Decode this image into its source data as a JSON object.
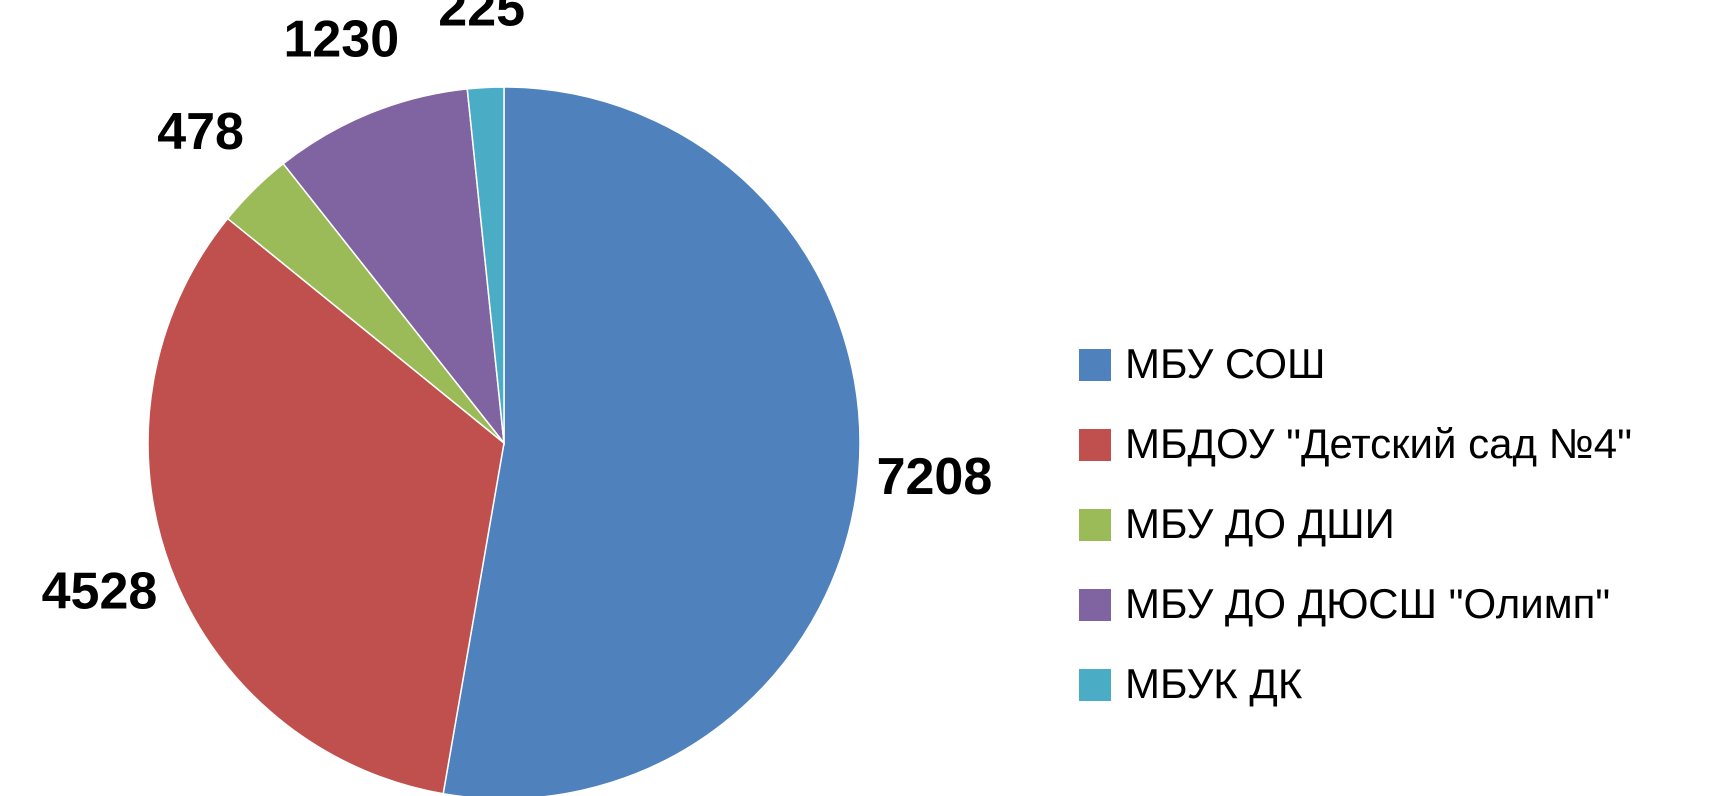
{
  "chart_data": {
    "type": "pie",
    "categories": [
      "МБУ СОШ",
      "МБДОУ \"Детский сад №4\"",
      "МБУ ДО ДШИ",
      "МБУ ДО ДЮСШ \"Олимп\"",
      "МБУК ДК"
    ],
    "values": [
      7208,
      4528,
      478,
      1230,
      225
    ],
    "colors": [
      "#4f81bd",
      "#c0504d",
      "#9bbb59",
      "#8064a2",
      "#4bacc6"
    ],
    "legend": "right"
  }
}
